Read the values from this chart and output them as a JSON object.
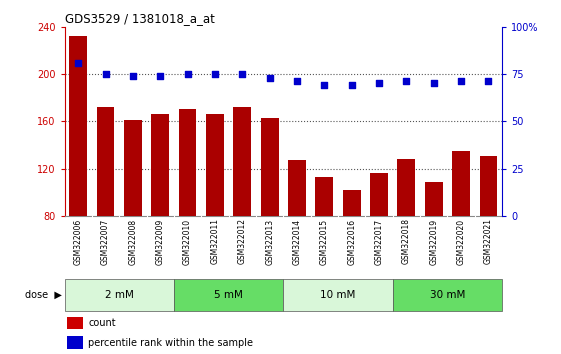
{
  "title": "GDS3529 / 1381018_a_at",
  "samples": [
    "GSM322006",
    "GSM322007",
    "GSM322008",
    "GSM322009",
    "GSM322010",
    "GSM322011",
    "GSM322012",
    "GSM322013",
    "GSM322014",
    "GSM322015",
    "GSM322016",
    "GSM322017",
    "GSM322018",
    "GSM322019",
    "GSM322020",
    "GSM322021"
  ],
  "counts": [
    232,
    172,
    161,
    166,
    170,
    166,
    172,
    163,
    127,
    113,
    102,
    116,
    128,
    109,
    135,
    131
  ],
  "percentiles": [
    81,
    75,
    74,
    74,
    75,
    75,
    75,
    73,
    71,
    69,
    69,
    70,
    71,
    70,
    71,
    71
  ],
  "bar_color": "#AA0000",
  "dot_color": "#0000CC",
  "ylim_left": [
    80,
    240
  ],
  "ylim_right": [
    0,
    100
  ],
  "yticks_left": [
    80,
    120,
    160,
    200,
    240
  ],
  "yticks_right": [
    0,
    25,
    50,
    75,
    100
  ],
  "ytick_labels_right": [
    "0",
    "25",
    "50",
    "75",
    "100%"
  ],
  "dose_groups": [
    {
      "label": "2 mM",
      "start": 0,
      "end": 3,
      "color": "#d9f7d9"
    },
    {
      "label": "5 mM",
      "start": 4,
      "end": 7,
      "color": "#66dd66"
    },
    {
      "label": "10 mM",
      "start": 8,
      "end": 11,
      "color": "#d9f7d9"
    },
    {
      "label": "30 mM",
      "start": 12,
      "end": 15,
      "color": "#66dd66"
    }
  ],
  "dose_label": "dose",
  "legend_count_label": "count",
  "legend_pct_label": "percentile rank within the sample",
  "bar_color_legend": "#CC0000",
  "dot_color_legend": "#0000CC",
  "sample_area_color": "#c8c8c8",
  "dotted_line_color": "#555555",
  "bar_width": 0.65,
  "left_tick_color": "#CC0000",
  "right_tick_color": "#0000CC"
}
